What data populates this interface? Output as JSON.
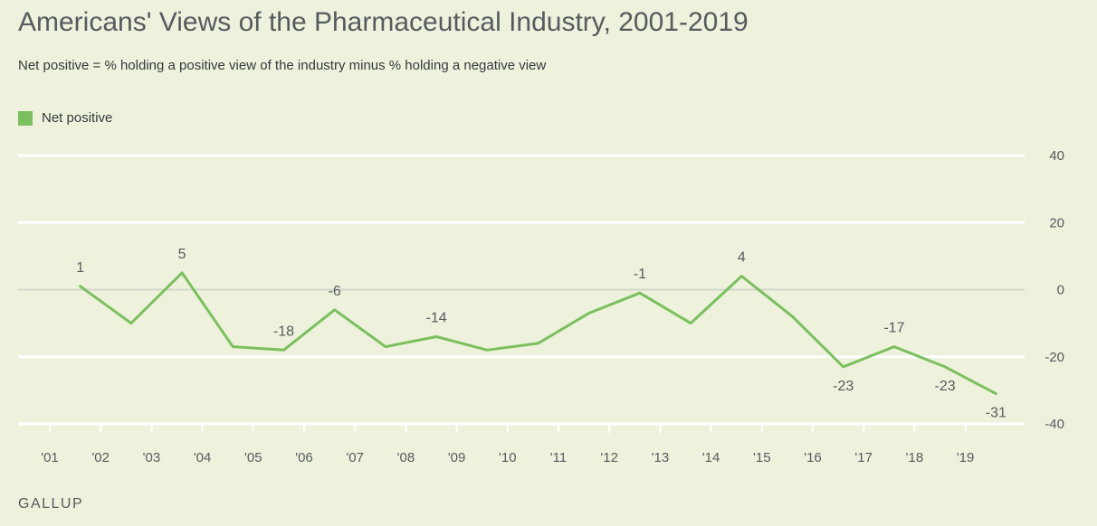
{
  "chart_data": {
    "type": "line",
    "title": "Americans' Views of the Pharmaceutical Industry, 2001-2019",
    "subtitle": "Net positive = % holding a positive view of the industry minus % holding a negative view",
    "ylim": [
      -40,
      40
    ],
    "yticks": [
      40,
      20,
      0,
      -20,
      -40
    ],
    "grid": true,
    "legend_position": "top-left",
    "x_tick_labels": [
      "'01",
      "'02",
      "'03",
      "'04",
      "'05",
      "'06",
      "'07",
      "'08",
      "'09",
      "'10",
      "'11",
      "'12",
      "'13",
      "'14",
      "'15",
      "'16",
      "'17",
      "'18",
      "'19"
    ],
    "series": [
      {
        "name": "Net positive",
        "color": "#7bbf5e",
        "points": [
          {
            "x": 2001.6,
            "y": 1,
            "label": "1",
            "label_pos": "above"
          },
          {
            "x": 2002.6,
            "y": -10,
            "label": "",
            "label_pos": ""
          },
          {
            "x": 2003.6,
            "y": 5,
            "label": "5",
            "label_pos": "above"
          },
          {
            "x": 2004.6,
            "y": -17,
            "label": "",
            "label_pos": ""
          },
          {
            "x": 2005.6,
            "y": -18,
            "label": "-18",
            "label_pos": "above"
          },
          {
            "x": 2006.6,
            "y": -6,
            "label": "-6",
            "label_pos": "above"
          },
          {
            "x": 2007.6,
            "y": -17,
            "label": "",
            "label_pos": ""
          },
          {
            "x": 2008.6,
            "y": -14,
            "label": "-14",
            "label_pos": "above"
          },
          {
            "x": 2009.6,
            "y": -18,
            "label": "",
            "label_pos": ""
          },
          {
            "x": 2010.6,
            "y": -16,
            "label": "",
            "label_pos": ""
          },
          {
            "x": 2011.6,
            "y": -7,
            "label": "",
            "label_pos": ""
          },
          {
            "x": 2012.6,
            "y": -1,
            "label": "-1",
            "label_pos": "above"
          },
          {
            "x": 2013.6,
            "y": -10,
            "label": "",
            "label_pos": ""
          },
          {
            "x": 2014.6,
            "y": 4,
            "label": "4",
            "label_pos": "above"
          },
          {
            "x": 2015.6,
            "y": -8,
            "label": "",
            "label_pos": ""
          },
          {
            "x": 2016.6,
            "y": -23,
            "label": "-23",
            "label_pos": "below"
          },
          {
            "x": 2017.6,
            "y": -17,
            "label": "-17",
            "label_pos": "above"
          },
          {
            "x": 2018.6,
            "y": -23,
            "label": "-23",
            "label_pos": "below"
          },
          {
            "x": 2019.6,
            "y": -31,
            "label": "-31",
            "label_pos": "below"
          }
        ]
      }
    ]
  },
  "source_label": "GALLUP"
}
